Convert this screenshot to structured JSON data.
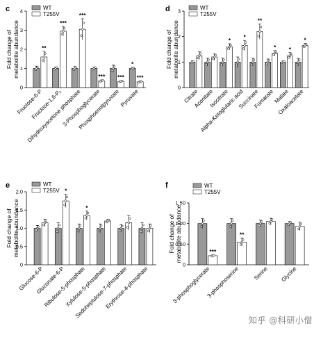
{
  "legend": {
    "wt": "WT",
    "mutant": "T255V"
  },
  "colors": {
    "wt_fill": "#999999",
    "mutant_fill": "#ffffff",
    "stroke": "#000000"
  },
  "watermark": "知乎 @科研小僧",
  "chart_data": [
    {
      "type": "bar",
      "panel": "c",
      "ylabel": [
        "Fold change of",
        "metabolite abundance"
      ],
      "ylim": [
        0,
        4
      ],
      "yticks": [
        0,
        1,
        2,
        3,
        4
      ],
      "categories": [
        "Fructose-6-P",
        "Fructose-1,6-P₂",
        "Dihydroxyacetone phosphate",
        "3-Phosphoglycerate",
        "Phosphoenolpyruvate",
        "Pyruvate"
      ],
      "series": [
        {
          "name": "WT",
          "values": [
            1.0,
            1.0,
            1.0,
            1.0,
            1.0,
            1.0
          ],
          "errors": [
            0.12,
            0.08,
            0.1,
            0.08,
            0.18,
            0.06
          ]
        },
        {
          "name": "T255V",
          "values": [
            1.6,
            2.95,
            3.05,
            0.35,
            0.32,
            0.3
          ],
          "errors": [
            0.3,
            0.25,
            0.55,
            0.05,
            0.04,
            0.05
          ]
        }
      ],
      "significance": [
        "**",
        "***",
        "***",
        "***",
        "***",
        "***"
      ],
      "wt_marks": [
        "",
        "",
        "",
        "",
        "",
        "*"
      ]
    },
    {
      "type": "bar",
      "panel": "d",
      "ylabel": [
        "Fold change of",
        "metabolite abundance"
      ],
      "ylim": [
        0,
        3
      ],
      "yticks": [
        0,
        1,
        2,
        3
      ],
      "categories": [
        "Citrate",
        "Aconitate",
        "Isocitrate",
        "Alpha-Ketoglutaric acid",
        "Succinate",
        "Fumarate",
        "Malate",
        "Oxaloacetate"
      ],
      "series": [
        {
          "name": "WT",
          "values": [
            1.0,
            1.0,
            1.0,
            1.0,
            1.0,
            1.0,
            1.0,
            1.0
          ],
          "errors": [
            0.05,
            0.15,
            0.15,
            0.2,
            0.15,
            0.12,
            0.05,
            0.15
          ]
        },
        {
          "name": "T255V",
          "values": [
            1.25,
            1.2,
            1.6,
            1.65,
            2.2,
            1.35,
            1.25,
            1.65
          ],
          "errors": [
            0.15,
            0.12,
            0.12,
            0.2,
            0.3,
            0.1,
            0.12,
            0.08
          ]
        }
      ],
      "significance": [
        "",
        "",
        "*",
        "*",
        "**",
        "*",
        "*",
        "*"
      ]
    },
    {
      "type": "bar",
      "panel": "e",
      "ylabel": [
        "Fold change of",
        "metabolite abundance"
      ],
      "ylim": [
        0,
        2.0
      ],
      "yticks": [
        0,
        0.5,
        1.0,
        1.5,
        2.0
      ],
      "yticklabels": [
        "0",
        "0.5",
        "1.0",
        "1.5",
        "2.0"
      ],
      "categories": [
        "Glucose-6-P",
        "Gluconate-6-P",
        "Ribulose-5-phosphate",
        "Xylulose-5-phosphate",
        "Sedoheptulose-7-phosphate",
        "Erythrose-4-phosphate"
      ],
      "series": [
        {
          "name": "WT",
          "values": [
            1.0,
            1.0,
            1.0,
            1.0,
            1.0,
            1.0
          ],
          "errors": [
            0.08,
            0.15,
            0.12,
            0.12,
            0.1,
            0.15
          ]
        },
        {
          "name": "T255V",
          "values": [
            1.15,
            1.75,
            1.35,
            1.2,
            1.15,
            1.0
          ],
          "errors": [
            0.1,
            0.18,
            0.12,
            0.05,
            0.2,
            0.12
          ]
        }
      ],
      "significance": [
        "",
        "*",
        "*",
        "",
        "",
        ""
      ]
    },
    {
      "type": "bar",
      "panel": "f",
      "ylabel": [
        "Fold change of",
        "metabolite abundance"
      ],
      "ylim": [
        0,
        1.5
      ],
      "yticks": [
        0,
        0.5,
        1.0,
        1.5
      ],
      "yticklabels": [
        "0",
        "0.50",
        "1.00",
        "1.50"
      ],
      "categories": [
        "3-phosphoglycerate",
        "3-phosphoserine",
        "Serine",
        "Glycine"
      ],
      "series": [
        {
          "name": "WT",
          "values": [
            1.0,
            1.0,
            1.0,
            1.0
          ],
          "errors": [
            0.12,
            0.12,
            0.08,
            0.05
          ]
        },
        {
          "name": "T255V",
          "values": [
            0.22,
            0.55,
            1.05,
            0.93
          ],
          "errors": [
            0.02,
            0.1,
            0.08,
            0.1
          ]
        }
      ],
      "significance": [
        "***",
        "**",
        "",
        ""
      ]
    }
  ]
}
